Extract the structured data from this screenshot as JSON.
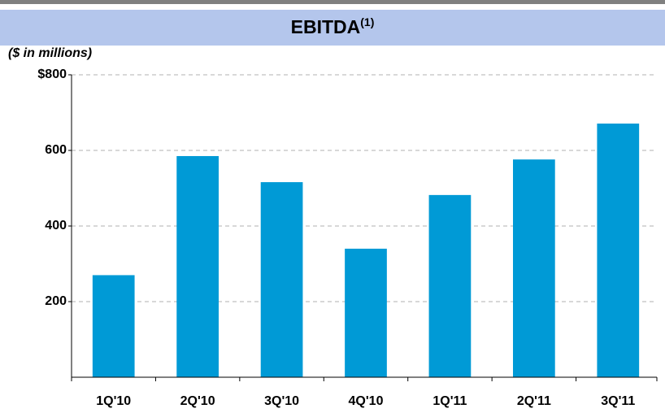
{
  "chart_data": {
    "type": "bar",
    "title": "EBITDA",
    "title_footnote": "(1)",
    "subtitle": "($ in millions)",
    "categories": [
      "1Q'10",
      "2Q'10",
      "3Q'10",
      "4Q'10",
      "1Q'11",
      "2Q'11",
      "3Q'11"
    ],
    "values": [
      270,
      585,
      516,
      340,
      482,
      576,
      671
    ],
    "color": "#009ad6",
    "ylim": [
      0,
      800
    ],
    "yticks": [
      200,
      400,
      600,
      {
        "value": 800,
        "label": "$800"
      }
    ],
    "grid": true
  }
}
